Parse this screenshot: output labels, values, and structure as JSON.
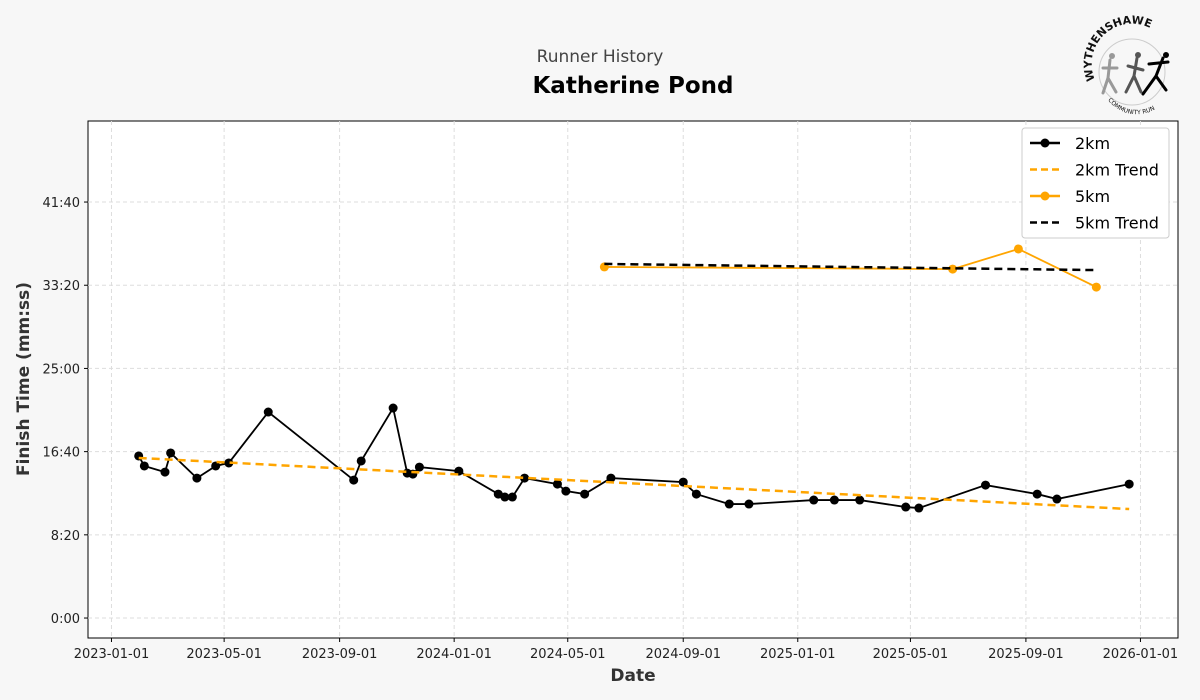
{
  "header": {
    "subtitle": "Runner History",
    "title": "Katherine Pond"
  },
  "logo": {
    "text_top": "WYTHENSHAWE",
    "text_bottom": "COMMUNITY RUN"
  },
  "chart_data": {
    "type": "line",
    "title": "Katherine Pond",
    "subtitle": "Runner History",
    "xlabel": "Date",
    "ylabel": "Finish Time (mm:ss)",
    "xlim": [
      "2022-12-07",
      "2026-02-10"
    ],
    "ylim_seconds": [
      -120,
      2987
    ],
    "grid": true,
    "legend_placement": "top-right",
    "x_ticks": [
      "2023-01-01",
      "2023-05-01",
      "2023-09-01",
      "2024-01-01",
      "2024-05-01",
      "2024-09-01",
      "2025-01-01",
      "2025-05-01",
      "2025-09-01",
      "2026-01-01"
    ],
    "y_ticks": [
      "0:00",
      "8:20",
      "16:40",
      "25:00",
      "33:20",
      "41:40"
    ],
    "series": [
      {
        "name": "2km",
        "style": "solid-marker",
        "color": "#000000",
        "points": [
          [
            "2023-01-30",
            "16:14"
          ],
          [
            "2023-02-05",
            "15:14"
          ],
          [
            "2023-02-27",
            "14:37"
          ],
          [
            "2023-03-05",
            "16:32"
          ],
          [
            "2023-04-02",
            "14:01"
          ],
          [
            "2023-04-22",
            "15:14"
          ],
          [
            "2023-05-06",
            "15:32"
          ],
          [
            "2023-06-17",
            "20:38"
          ],
          [
            "2023-09-16",
            "13:49"
          ],
          [
            "2023-09-24",
            "15:44"
          ],
          [
            "2023-10-28",
            "21:02"
          ],
          [
            "2023-11-12",
            "14:31"
          ],
          [
            "2023-11-18",
            "14:25"
          ],
          [
            "2023-11-25",
            "15:07"
          ],
          [
            "2024-01-06",
            "14:43"
          ],
          [
            "2024-02-17",
            "12:25"
          ],
          [
            "2024-02-24",
            "12:07"
          ],
          [
            "2024-03-03",
            "12:07"
          ],
          [
            "2024-03-16",
            "14:01"
          ],
          [
            "2024-04-20",
            "13:25"
          ],
          [
            "2024-04-29",
            "12:43"
          ],
          [
            "2024-05-19",
            "12:25"
          ],
          [
            "2024-06-16",
            "14:01"
          ],
          [
            "2024-09-01",
            "13:37"
          ],
          [
            "2024-09-15",
            "12:25"
          ],
          [
            "2024-10-20",
            "11:25"
          ],
          [
            "2024-11-10",
            "11:25"
          ],
          [
            "2025-01-18",
            "11:49"
          ],
          [
            "2025-02-09",
            "11:49"
          ],
          [
            "2025-03-08",
            "11:49"
          ],
          [
            "2025-04-26",
            "11:07"
          ],
          [
            "2025-05-10",
            "11:01"
          ],
          [
            "2025-07-20",
            "13:19"
          ],
          [
            "2025-09-13",
            "12:25"
          ],
          [
            "2025-10-04",
            "11:55"
          ],
          [
            "2025-12-20",
            "13:25"
          ]
        ]
      },
      {
        "name": "2km Trend",
        "style": "dashed",
        "color": "#FFA500",
        "points": [
          [
            "2023-01-30",
            "16:02"
          ],
          [
            "2025-12-20",
            "10:55"
          ]
        ]
      },
      {
        "name": "5km",
        "style": "solid-marker",
        "color": "#FFA500",
        "points": [
          [
            "2024-06-09",
            "35:10"
          ],
          [
            "2025-06-15",
            "34:57"
          ],
          [
            "2025-08-24",
            "36:58"
          ],
          [
            "2025-11-15",
            "33:09"
          ]
        ]
      },
      {
        "name": "5km Trend",
        "style": "dashed",
        "color": "#000000",
        "points": [
          [
            "2024-06-09",
            "35:28"
          ],
          [
            "2025-11-15",
            "34:51"
          ]
        ]
      }
    ]
  }
}
